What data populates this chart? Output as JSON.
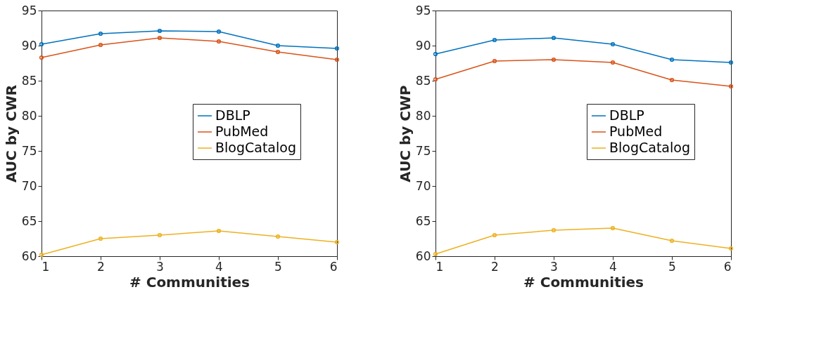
{
  "chart_data": [
    {
      "type": "line",
      "xlabel": "# Communities",
      "ylabel": "AUC by CWR",
      "x": [
        1,
        2,
        3,
        4,
        5,
        6
      ],
      "xlim": [
        1,
        6
      ],
      "xticks": [
        1,
        2,
        3,
        4,
        5,
        6
      ],
      "ylim": [
        60,
        95
      ],
      "yticks": [
        60,
        65,
        70,
        75,
        80,
        85,
        90,
        95
      ],
      "grid": false,
      "legend": "right",
      "marker": "circle",
      "line_style": "solid",
      "series": [
        {
          "name": "DBLP",
          "color": "#0072bd",
          "values": [
            90.2,
            91.7,
            92.1,
            92.0,
            90.0,
            89.6
          ]
        },
        {
          "name": "PubMed",
          "color": "#d95319",
          "values": [
            88.3,
            90.1,
            91.1,
            90.6,
            89.1,
            88.0
          ]
        },
        {
          "name": "BlogCatalog",
          "color": "#edb120",
          "values": [
            60.2,
            62.5,
            63.0,
            63.6,
            62.8,
            62.0
          ]
        }
      ]
    },
    {
      "type": "line",
      "xlabel": "# Communities",
      "ylabel": "AUC by CWP",
      "x": [
        1,
        2,
        3,
        4,
        5,
        6
      ],
      "xlim": [
        1,
        6
      ],
      "xticks": [
        1,
        2,
        3,
        4,
        5,
        6
      ],
      "ylim": [
        60,
        95
      ],
      "yticks": [
        60,
        65,
        70,
        75,
        80,
        85,
        90,
        95
      ],
      "grid": false,
      "legend": "right",
      "marker": "circle",
      "line_style": "solid",
      "series": [
        {
          "name": "DBLP",
          "color": "#0072bd",
          "values": [
            88.8,
            90.8,
            91.1,
            90.2,
            88.0,
            87.6
          ]
        },
        {
          "name": "PubMed",
          "color": "#d95319",
          "values": [
            85.2,
            87.8,
            88.0,
            87.6,
            85.1,
            84.2
          ]
        },
        {
          "name": "BlogCatalog",
          "color": "#edb120",
          "values": [
            60.3,
            63.0,
            63.7,
            64.0,
            62.2,
            61.1
          ]
        }
      ]
    }
  ]
}
